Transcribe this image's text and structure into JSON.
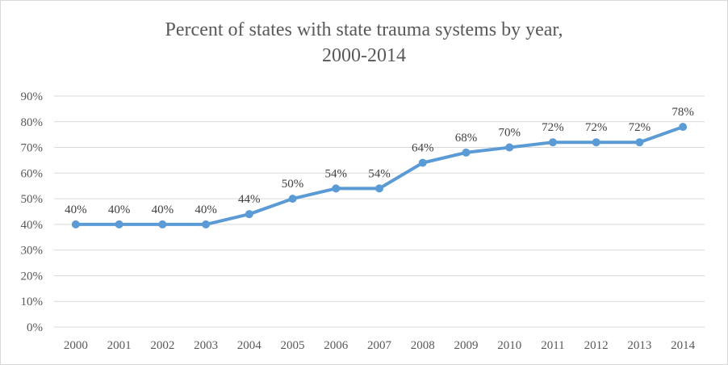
{
  "chart_data": {
    "type": "line",
    "title_line1": "Percent of states with state trauma systems by year,",
    "title_line2": "2000-2014",
    "xlabel": "",
    "ylabel": "",
    "categories": [
      "2000",
      "2001",
      "2002",
      "2003",
      "2004",
      "2005",
      "2006",
      "2007",
      "2008",
      "2009",
      "2010",
      "2011",
      "2012",
      "2013",
      "2014"
    ],
    "series": [
      {
        "values": [
          40,
          40,
          40,
          40,
          44,
          50,
          54,
          54,
          64,
          68,
          70,
          72,
          72,
          72,
          78
        ],
        "data_labels": [
          "40%",
          "40%",
          "40%",
          "40%",
          "44%",
          "50%",
          "54%",
          "54%",
          "64%",
          "68%",
          "70%",
          "72%",
          "72%",
          "72%",
          "78%"
        ]
      }
    ],
    "ylim": [
      0,
      90
    ],
    "ytick_values": [
      0,
      10,
      20,
      30,
      40,
      50,
      60,
      70,
      80,
      90
    ],
    "ytick_labels": [
      "0%",
      "10%",
      "20%",
      "30%",
      "40%",
      "50%",
      "60%",
      "70%",
      "80%",
      "90%"
    ],
    "grid": true,
    "legend": "none",
    "colors": {
      "line": "#5b9bd5",
      "grid": "#d9d9d9"
    }
  }
}
